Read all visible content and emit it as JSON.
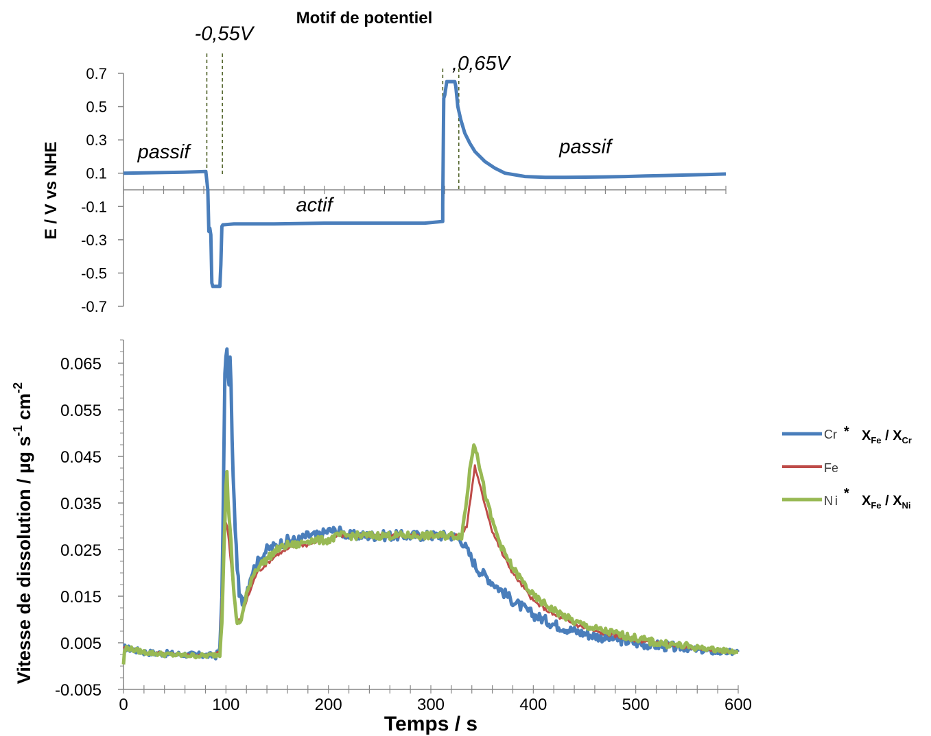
{
  "chart_data": [
    {
      "type": "line",
      "title": "Motif de potentiel",
      "ylabel": "E / V vs NHE",
      "xlabel": "",
      "xlim": [
        0,
        600
      ],
      "ylim": [
        -0.7,
        0.7
      ],
      "yticks": [
        "0.7",
        "0.5",
        "0.3",
        "0.1",
        "-0.1",
        "-0.3",
        "-0.5",
        "-0.7"
      ],
      "grid": false,
      "series": [
        {
          "name": "",
          "color": "#4a7ebb",
          "x": [
            0,
            20,
            40,
            60,
            82,
            84,
            85,
            86,
            87,
            88,
            89,
            91,
            96,
            97,
            98,
            99,
            100,
            110,
            150,
            200,
            250,
            300,
            318,
            318,
            319,
            320,
            322,
            323,
            330,
            331,
            333,
            336,
            340,
            345,
            350,
            360,
            370,
            380,
            400,
            420,
            440,
            460,
            480,
            500,
            520,
            540,
            560,
            580,
            600
          ],
          "y": [
            0.1,
            0.102,
            0.104,
            0.106,
            0.11,
            0.0,
            -0.25,
            -0.23,
            -0.27,
            -0.56,
            -0.58,
            -0.58,
            -0.58,
            -0.45,
            -0.22,
            -0.21,
            -0.21,
            -0.205,
            -0.205,
            -0.2,
            -0.2,
            -0.2,
            -0.19,
            -0.09,
            0.55,
            0.57,
            0.65,
            0.65,
            0.65,
            0.62,
            0.5,
            0.42,
            0.34,
            0.28,
            0.23,
            0.17,
            0.13,
            0.1,
            0.08,
            0.075,
            0.075,
            0.076,
            0.078,
            0.08,
            0.083,
            0.086,
            0.089,
            0.092,
            0.095
          ]
        }
      ],
      "annotations": [
        {
          "text": "-0,55V",
          "x": 100,
          "y": 0.9
        },
        {
          "text": ",0,65V",
          "x": 356,
          "y": 0.72
        },
        {
          "text": "passif",
          "x": 40,
          "y": 0.19
        },
        {
          "text": "actif",
          "x": 190,
          "y": -0.13
        },
        {
          "text": "passif",
          "x": 460,
          "y": 0.22
        }
      ],
      "markers_x": [
        83,
        98.5,
        318,
        334
      ]
    },
    {
      "type": "line",
      "title": "",
      "xlabel": "Temps / s",
      "ylabel": "Vitesse   de dissolution  / µg s-1 cm-2",
      "ylabel_parts": {
        "main": "Vitesse   de dissolution  / µg s",
        "sup1": "-1",
        "mid": " cm",
        "sup2": "-2"
      },
      "xlim": [
        0,
        600
      ],
      "ylim": [
        -0.005,
        0.07
      ],
      "xticks": [
        "0",
        "100",
        "200",
        "300",
        "400",
        "500",
        "600"
      ],
      "yticks": [
        "0.065",
        "0.055",
        "0.045",
        "0.035",
        "0.025",
        "0.015",
        "0.005",
        "-0.005"
      ],
      "grid": false,
      "legend_position": "right",
      "series": [
        {
          "name": "Cr",
          "legend_suffix": {
            "star": "*",
            "a": "X",
            "a_sub": "Fe",
            "sep": " / ",
            "b": "X",
            "b_sub": "Cr"
          },
          "color": "#4a7ebb",
          "x": [
            0,
            10,
            20,
            30,
            40,
            50,
            60,
            70,
            80,
            90,
            94,
            96,
            98,
            99,
            100,
            101,
            103,
            104,
            105,
            106,
            108,
            110,
            113,
            116,
            120,
            125,
            130,
            140,
            150,
            160,
            170,
            180,
            190,
            200,
            210,
            220,
            230,
            240,
            250,
            260,
            270,
            280,
            290,
            300,
            310,
            320,
            330,
            335,
            340,
            345,
            350,
            360,
            370,
            380,
            390,
            400,
            420,
            440,
            460,
            480,
            500,
            520,
            540,
            560,
            580,
            600
          ],
          "y": [
            0.004,
            0.0035,
            0.003,
            0.0028,
            0.0027,
            0.0026,
            0.0025,
            0.0024,
            0.0023,
            0.0022,
            0.0035,
            0.015,
            0.045,
            0.062,
            0.067,
            0.067,
            0.06,
            0.066,
            0.06,
            0.048,
            0.035,
            0.025,
            0.015,
            0.014,
            0.016,
            0.02,
            0.022,
            0.025,
            0.026,
            0.027,
            0.027,
            0.028,
            0.028,
            0.029,
            0.029,
            0.028,
            0.028,
            0.028,
            0.028,
            0.028,
            0.028,
            0.028,
            0.028,
            0.028,
            0.028,
            0.028,
            0.027,
            0.025,
            0.023,
            0.021,
            0.02,
            0.018,
            0.016,
            0.014,
            0.0125,
            0.011,
            0.009,
            0.0075,
            0.0065,
            0.0058,
            0.005,
            0.0045,
            0.004,
            0.0035,
            0.003,
            0.003
          ]
        },
        {
          "name": "Fe",
          "color": "#be4b48",
          "x": [
            0,
            20,
            40,
            60,
            80,
            94,
            96,
            98,
            100,
            102,
            105,
            108,
            111,
            113,
            116,
            120,
            125,
            130,
            140,
            150,
            160,
            170,
            180,
            190,
            200,
            210,
            220,
            240,
            260,
            280,
            300,
            320,
            330,
            335,
            340,
            343,
            345,
            350,
            355,
            360,
            370,
            380,
            390,
            400,
            420,
            440,
            460,
            480,
            500,
            520,
            540,
            560,
            580,
            600
          ],
          "y": [
            0.004,
            0.003,
            0.0027,
            0.0025,
            0.0023,
            0.003,
            0.015,
            0.026,
            0.031,
            0.029,
            0.022,
            0.014,
            0.01,
            0.0098,
            0.011,
            0.014,
            0.017,
            0.02,
            0.022,
            0.024,
            0.025,
            0.026,
            0.026,
            0.027,
            0.027,
            0.028,
            0.028,
            0.028,
            0.028,
            0.028,
            0.028,
            0.028,
            0.028,
            0.03,
            0.038,
            0.043,
            0.041,
            0.037,
            0.033,
            0.029,
            0.024,
            0.02,
            0.017,
            0.014,
            0.011,
            0.009,
            0.0075,
            0.0065,
            0.0056,
            0.005,
            0.0043,
            0.0038,
            0.0032,
            0.003
          ]
        },
        {
          "name": "Ni",
          "legend_suffix": {
            "star": "*",
            "a": "X",
            "a_sub": "Fe",
            "sep": " / ",
            "b": "X",
            "b_sub": "Ni"
          },
          "color": "#98b954",
          "x": [
            0,
            1,
            3,
            10,
            20,
            40,
            60,
            80,
            94,
            96,
            98,
            100,
            101,
            102,
            104,
            106,
            108,
            110,
            112,
            114,
            117,
            120,
            125,
            130,
            140,
            150,
            160,
            170,
            180,
            190,
            200,
            210,
            220,
            240,
            260,
            280,
            300,
            320,
            330,
            334,
            338,
            342,
            345,
            350,
            355,
            360,
            370,
            380,
            390,
            400,
            420,
            440,
            460,
            480,
            500,
            520,
            540,
            560,
            580,
            600
          ],
          "y": [
            0.0005,
            0.003,
            0.004,
            0.0035,
            0.003,
            0.0025,
            0.0023,
            0.0022,
            0.0025,
            0.01,
            0.025,
            0.038,
            0.042,
            0.035,
            0.03,
            0.022,
            0.015,
            0.01,
            0.009,
            0.0095,
            0.012,
            0.015,
            0.019,
            0.021,
            0.023,
            0.025,
            0.026,
            0.026,
            0.027,
            0.027,
            0.027,
            0.028,
            0.028,
            0.028,
            0.028,
            0.028,
            0.028,
            0.028,
            0.028,
            0.034,
            0.042,
            0.048,
            0.046,
            0.04,
            0.035,
            0.031,
            0.025,
            0.021,
            0.018,
            0.015,
            0.012,
            0.0095,
            0.008,
            0.007,
            0.006,
            0.005,
            0.0045,
            0.004,
            0.0035,
            0.003
          ]
        }
      ]
    }
  ]
}
